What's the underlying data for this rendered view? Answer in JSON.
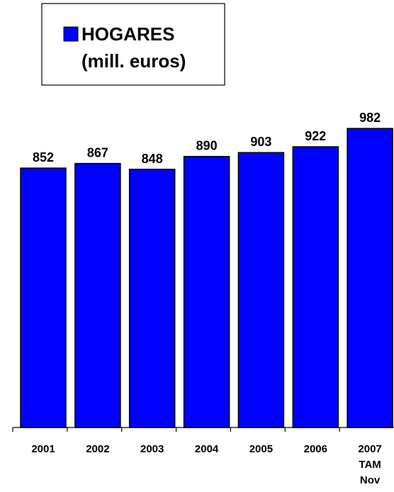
{
  "chart_data": {
    "type": "bar",
    "categories": [
      [
        "2001"
      ],
      [
        "2002"
      ],
      [
        "2003"
      ],
      [
        "2004"
      ],
      [
        "2005"
      ],
      [
        "2006"
      ],
      [
        "2007",
        "TAM",
        "Nov"
      ]
    ],
    "series": [
      {
        "name": "HOGARES (mill. euros)",
        "values": [
          852,
          867,
          848,
          890,
          903,
          922,
          982
        ],
        "color": "#0000FF"
      }
    ],
    "value_labels": [
      "852",
      "867",
      "848",
      "890",
      "903",
      "922",
      "982"
    ],
    "legend": {
      "lines": [
        "HOGARES",
        "(mill. euros)"
      ],
      "position": "top-left"
    },
    "grid": false
  }
}
